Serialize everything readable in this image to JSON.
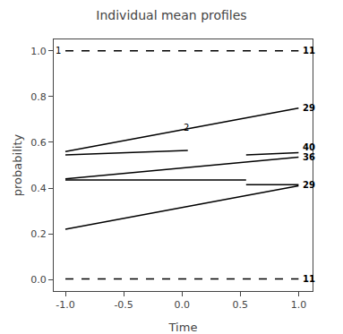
{
  "chart_data": {
    "type": "line",
    "title": "Individual mean profiles",
    "xlabel": "Time",
    "ylabel": "probability",
    "xlim": [
      -1.1,
      1.12
    ],
    "ylim": [
      -0.05,
      1.05
    ],
    "xticks": [
      {
        "value": -1.0,
        "label": "-1.0"
      },
      -0.5,
      {
        "value": 0.0,
        "label": "0.0"
      },
      0.5,
      {
        "value": 1.0,
        "label": "1.0"
      }
    ],
    "yticks": [
      {
        "value": 0.0,
        "label": "0.0"
      },
      0.2,
      0.4,
      0.6,
      0.8,
      {
        "value": 1.0,
        "label": "1.0"
      }
    ],
    "grid": false,
    "series": [
      {
        "x": [
          -1.0,
          1.0
        ],
        "values": [
          1.0,
          1.0
        ],
        "line_style": "dashed",
        "color": "black"
      },
      {
        "x": [
          -1.0,
          1.0
        ],
        "values": [
          0.56,
          0.75
        ],
        "line_style": "solid",
        "color": "black"
      },
      {
        "x": [
          -1.0,
          0.05
        ],
        "values": [
          0.545,
          0.565
        ],
        "line_style": "solid",
        "color": "black"
      },
      {
        "x": [
          0.55,
          1.0
        ],
        "values": [
          0.545,
          0.555
        ],
        "line_style": "solid",
        "color": "black"
      },
      {
        "x": [
          -1.0,
          1.0
        ],
        "values": [
          0.44,
          0.535
        ],
        "line_style": "solid",
        "color": "black"
      },
      {
        "x": [
          -1.0,
          0.55
        ],
        "values": [
          0.435,
          0.435
        ],
        "line_style": "solid",
        "color": "black"
      },
      {
        "x": [
          0.55,
          1.0
        ],
        "values": [
          0.415,
          0.415
        ],
        "line_style": "solid",
        "color": "black"
      },
      {
        "x": [
          -1.0,
          1.0
        ],
        "values": [
          0.22,
          0.41
        ],
        "line_style": "solid",
        "color": "black"
      },
      {
        "x": [
          -1.0,
          1.0
        ],
        "values": [
          0.003,
          0.003
        ],
        "line_style": "dashed",
        "color": "black"
      }
    ],
    "annotations": [
      {
        "text": "1",
        "x": -1.0,
        "y": 1.0
      },
      {
        "text": "11",
        "x": 1.02,
        "y": 1.0
      },
      {
        "text": "29",
        "x": 1.02,
        "y": 0.75
      },
      {
        "text": "2",
        "x": 0.0,
        "y": 0.665
      },
      {
        "text": "40",
        "x": 1.02,
        "y": 0.555
      },
      {
        "text": "36",
        "x": 1.02,
        "y": 0.535
      },
      {
        "text": "29",
        "x": 1.02,
        "y": 0.415
      },
      {
        "text": "11",
        "x": 1.02,
        "y": 0.003
      }
    ]
  }
}
